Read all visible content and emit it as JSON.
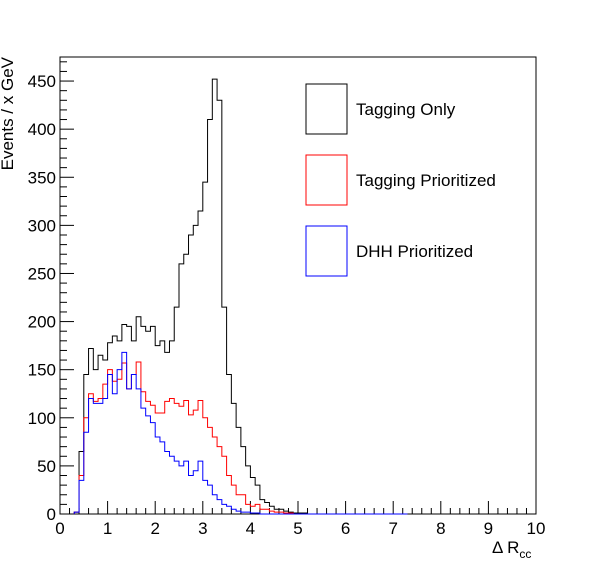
{
  "chart_data": {
    "type": "step-histogram",
    "title": "",
    "ylabel": "Events / x GeV",
    "xlabel": {
      "main": "Δ R",
      "sub": "cc"
    },
    "xlim": [
      0,
      10
    ],
    "ylim": [
      0,
      475
    ],
    "bin_width": 0.1,
    "x_ticks": [
      "0",
      "1",
      "2",
      "3",
      "4",
      "5",
      "6",
      "7",
      "8",
      "9",
      "10"
    ],
    "y_ticks": [
      "0",
      "50",
      "100",
      "150",
      "200",
      "250",
      "300",
      "350",
      "400",
      "450"
    ],
    "x_tick_values": [
      0,
      1,
      2,
      3,
      4,
      5,
      6,
      7,
      8,
      9,
      10
    ],
    "y_tick_values": [
      0,
      50,
      100,
      150,
      200,
      250,
      300,
      350,
      400,
      450
    ],
    "grid": false,
    "legend_position": "top-right",
    "series": [
      {
        "name": "Tagging Only",
        "color": "#000000",
        "x_start": 0.3,
        "values": [
          2,
          65,
          145,
          172,
          150,
          165,
          160,
          178,
          185,
          180,
          197,
          195,
          180,
          205,
          195,
          190,
          195,
          175,
          180,
          168,
          180,
          215,
          260,
          270,
          290,
          300,
          315,
          345,
          410,
          452,
          430,
          215,
          145,
          115,
          90,
          70,
          50,
          38,
          30,
          15,
          12,
          8,
          5,
          5,
          3,
          2,
          1,
          1,
          1,
          0,
          0,
          0,
          0,
          0,
          0,
          0,
          0,
          0,
          0,
          0,
          0,
          0,
          0,
          0,
          0,
          0,
          0,
          0,
          0,
          0
        ]
      },
      {
        "name": "Tagging Prioritized",
        "color": "#ff0000",
        "x_start": 0.3,
        "values": [
          2,
          40,
          100,
          125,
          117,
          120,
          135,
          150,
          138,
          140,
          157,
          130,
          145,
          158,
          127,
          117,
          113,
          105,
          105,
          117,
          120,
          115,
          112,
          118,
          103,
          108,
          118,
          100,
          90,
          80,
          70,
          60,
          40,
          30,
          20,
          20,
          10,
          8,
          10,
          5,
          5,
          3,
          2,
          2,
          1,
          1,
          0,
          0,
          0,
          0,
          0,
          0,
          0,
          0,
          0,
          0,
          0,
          0,
          0,
          0,
          0,
          0,
          0,
          0,
          0,
          0,
          0,
          0,
          0,
          0
        ]
      },
      {
        "name": "DHH Prioritized",
        "color": "#0000ff",
        "x_start": 0.3,
        "values": [
          2,
          35,
          85,
          120,
          115,
          115,
          120,
          145,
          125,
          150,
          168,
          130,
          145,
          130,
          110,
          102,
          95,
          80,
          75,
          65,
          60,
          55,
          50,
          55,
          40,
          45,
          55,
          35,
          30,
          20,
          15,
          10,
          8,
          5,
          3,
          2,
          2,
          1,
          1,
          0,
          0,
          0,
          0,
          0,
          0,
          0,
          0,
          0,
          0,
          0,
          0,
          0,
          0,
          0,
          0,
          0,
          0,
          0,
          0,
          0,
          0,
          0,
          0,
          0,
          0,
          0,
          0,
          0,
          0,
          0
        ]
      }
    ]
  }
}
